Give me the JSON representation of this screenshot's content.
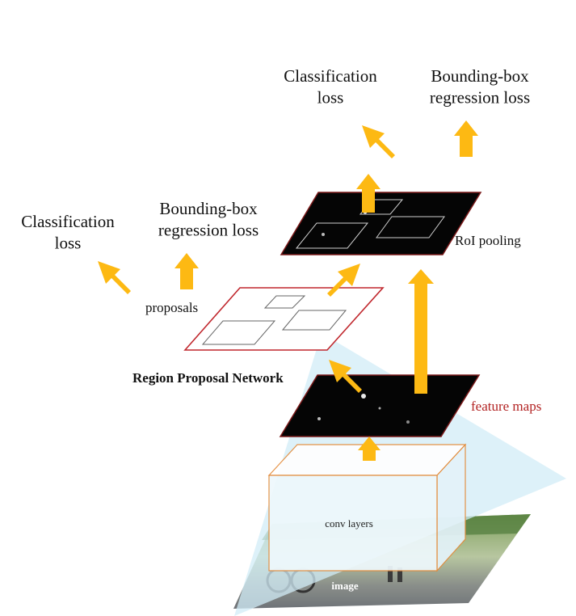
{
  "colors": {
    "arrow": "#FDB913",
    "proposal_border": "#C0272D",
    "feature_map_label": "#B22222",
    "conv_block_edge": "#E38B3A",
    "cone": "#D2ECF7"
  },
  "labels": {
    "top_classification": "Classification\nloss",
    "top_bbox": "Bounding-box\nregression loss",
    "left_classification": "Classification\nloss",
    "left_bbox": "Bounding-box\nregression loss",
    "roi_pooling": "RoI pooling",
    "proposals": "proposals",
    "rpn": "Region Proposal Network",
    "feature_maps": "feature maps",
    "conv_layers": "conv layers",
    "image": "image"
  },
  "icons": [
    "up-arrow-icon",
    "diagonal-arrow-icon"
  ]
}
